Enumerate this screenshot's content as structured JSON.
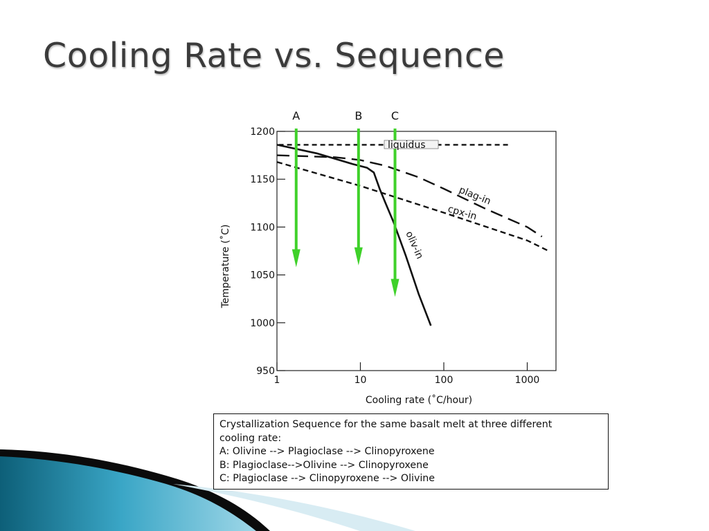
{
  "slide": {
    "title": "Cooling Rate vs. Sequence"
  },
  "colors": {
    "arrow": "#3fd12a",
    "line": "#111111",
    "decor_dark": "#0d5f78",
    "decor_light": "#69c4dc"
  },
  "chart_data": {
    "type": "line",
    "title": "",
    "xlabel": "Cooling rate (˚C/hour)",
    "ylabel": "Temperature (˚C)",
    "x_scale": "log",
    "xlim": [
      1,
      2000
    ],
    "ylim": [
      950,
      1200
    ],
    "x_ticks": [
      1,
      10,
      100,
      1000
    ],
    "x_tick_labels": [
      "1",
      "10",
      "100",
      "1000"
    ],
    "y_ticks": [
      950,
      1000,
      1050,
      1100,
      1150,
      1200
    ],
    "y_tick_labels": [
      "950",
      "1000",
      "1050",
      "1100",
      "1150",
      "1200"
    ],
    "grid": false,
    "series": [
      {
        "name": "liquidus",
        "style": "short-dash",
        "x": [
          1.05,
          600
        ],
        "y": [
          1186,
          1186
        ]
      },
      {
        "name": "plag-in",
        "style": "long-dash",
        "x": [
          1,
          5,
          10,
          20,
          50,
          100,
          300,
          1000,
          1500
        ],
        "y": [
          1175,
          1173,
          1170,
          1164,
          1152,
          1140,
          1120,
          1100,
          1090
        ]
      },
      {
        "name": "cpx-in",
        "style": "dash",
        "x": [
          1,
          10,
          100,
          1000,
          1800
        ],
        "y": [
          1168,
          1143,
          1115,
          1086,
          1075
        ]
      },
      {
        "name": "oliv-in",
        "style": "solid",
        "x": [
          1,
          3,
          8,
          12,
          14.5,
          17,
          20,
          25,
          35,
          50,
          70
        ],
        "y": [
          1186,
          1177,
          1166,
          1162,
          1157,
          1140,
          1125,
          1105,
          1070,
          1030,
          997
        ]
      }
    ],
    "annotations": [
      {
        "label": "A",
        "x": 1.7,
        "y_start": 1203,
        "y_end": 1058
      },
      {
        "label": "B",
        "x": 9.5,
        "y_start": 1203,
        "y_end": 1060
      },
      {
        "label": "C",
        "x": 26,
        "y_start": 1203,
        "y_end": 1027
      }
    ]
  },
  "caption": {
    "lines": [
      "Crystallization Sequence for the same basalt melt at three different",
      "cooling rate:",
      "A: Olivine --> Plagioclase --> Clinopyroxene",
      "B: Plagioclase-->Olivine --> Clinopyroxene",
      "C: Plagioclase --> Clinopyroxene --> Olivine"
    ]
  }
}
